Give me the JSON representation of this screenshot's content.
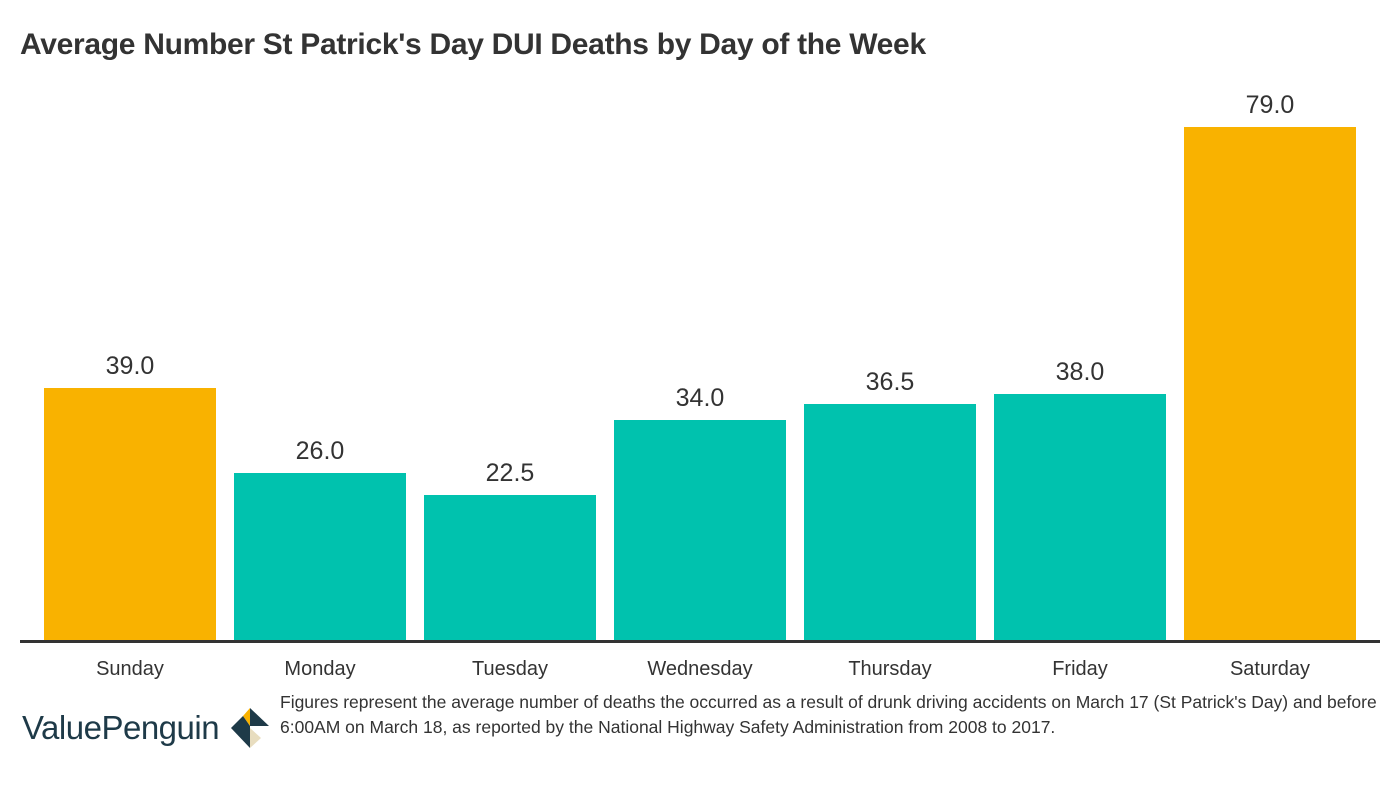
{
  "title": "Average Number St Patrick's Day DUI Deaths by Day of the Week",
  "colors": {
    "weekend": "#F9B200",
    "weekday": "#00C2AE",
    "axis": "#333333",
    "text": "#333333",
    "logo_text": "#1E3A48",
    "logo_dark": "#1E3A48",
    "logo_yellow": "#F9B200",
    "logo_beige": "#E8DDBF"
  },
  "footnote": "Figures represent the average number of deaths the occurred as a result of drunk driving accidents on March 17 (St Patrick's Day) and before 6:00AM on March 18, as reported by the National Highway Safety Administration from 2008 to 2017.",
  "logo": {
    "text": "ValuePenguin",
    "icon": "valuepenguin-logo-icon"
  },
  "chart_data": {
    "type": "bar",
    "title": "Average Number St Patrick's Day DUI Deaths by Day of the Week",
    "xlabel": "",
    "ylabel": "",
    "categories": [
      "Sunday",
      "Monday",
      "Tuesday",
      "Wednesday",
      "Thursday",
      "Friday",
      "Saturday"
    ],
    "values": [
      39.0,
      26.0,
      22.5,
      34.0,
      36.5,
      38.0,
      79.0
    ],
    "value_labels": [
      "39.0",
      "26.0",
      "22.5",
      "34.0",
      "36.5",
      "38.0",
      "79.0"
    ],
    "bar_colors": [
      "#F9B200",
      "#00C2AE",
      "#00C2AE",
      "#00C2AE",
      "#00C2AE",
      "#00C2AE",
      "#F9B200"
    ],
    "ylim": [
      0,
      86
    ],
    "grid": false,
    "legend": null,
    "y_axis_visible": false,
    "data_labels": true
  }
}
